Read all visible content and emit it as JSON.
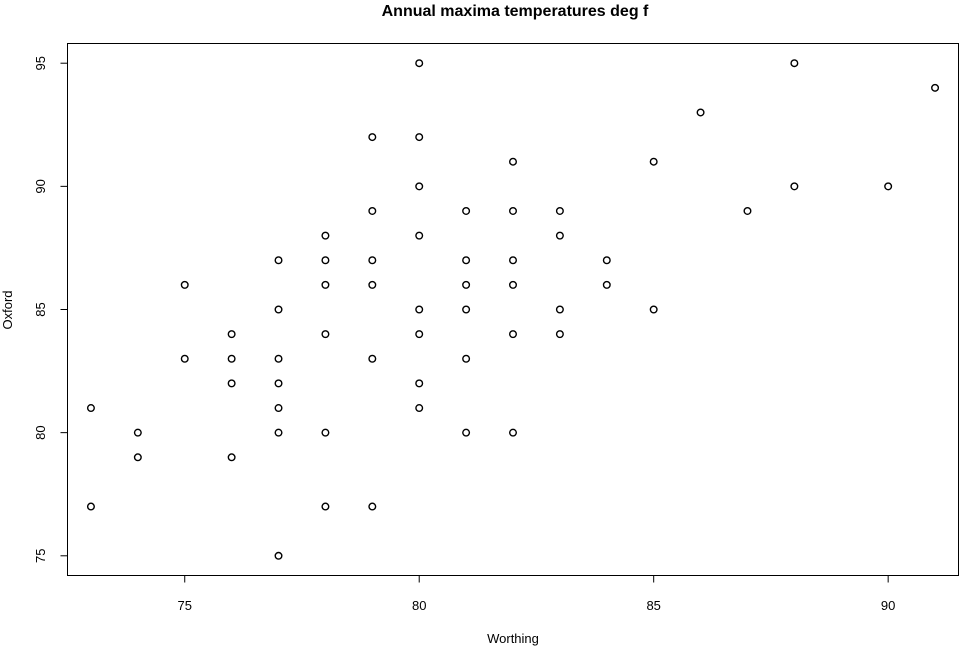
{
  "chart_data": {
    "type": "scatter",
    "title": "Annual maxima temperatures deg f",
    "xlabel": "Worthing",
    "ylabel": "Oxford",
    "xlim": [
      72.5,
      91.5
    ],
    "ylim": [
      74.2,
      95.8
    ],
    "xticks": [
      75,
      80,
      85,
      90
    ],
    "yticks": [
      75,
      80,
      85,
      90,
      95
    ],
    "marker": "open-circle",
    "grid": false,
    "points": [
      {
        "x": 73,
        "y": 81
      },
      {
        "x": 73,
        "y": 77
      },
      {
        "x": 74,
        "y": 80
      },
      {
        "x": 74,
        "y": 79
      },
      {
        "x": 75,
        "y": 86
      },
      {
        "x": 75,
        "y": 83
      },
      {
        "x": 76,
        "y": 84
      },
      {
        "x": 76,
        "y": 83
      },
      {
        "x": 76,
        "y": 82
      },
      {
        "x": 76,
        "y": 79
      },
      {
        "x": 77,
        "y": 87
      },
      {
        "x": 77,
        "y": 85
      },
      {
        "x": 77,
        "y": 83
      },
      {
        "x": 77,
        "y": 82
      },
      {
        "x": 77,
        "y": 81
      },
      {
        "x": 77,
        "y": 80
      },
      {
        "x": 77,
        "y": 75
      },
      {
        "x": 78,
        "y": 88
      },
      {
        "x": 78,
        "y": 87
      },
      {
        "x": 78,
        "y": 86
      },
      {
        "x": 78,
        "y": 84
      },
      {
        "x": 78,
        "y": 80
      },
      {
        "x": 78,
        "y": 77
      },
      {
        "x": 79,
        "y": 92
      },
      {
        "x": 79,
        "y": 89
      },
      {
        "x": 79,
        "y": 87
      },
      {
        "x": 79,
        "y": 86
      },
      {
        "x": 79,
        "y": 83
      },
      {
        "x": 79,
        "y": 77
      },
      {
        "x": 80,
        "y": 95
      },
      {
        "x": 80,
        "y": 92
      },
      {
        "x": 80,
        "y": 90
      },
      {
        "x": 80,
        "y": 88
      },
      {
        "x": 80,
        "y": 85
      },
      {
        "x": 80,
        "y": 84
      },
      {
        "x": 80,
        "y": 82
      },
      {
        "x": 80,
        "y": 81
      },
      {
        "x": 81,
        "y": 89
      },
      {
        "x": 81,
        "y": 87
      },
      {
        "x": 81,
        "y": 86
      },
      {
        "x": 81,
        "y": 85
      },
      {
        "x": 81,
        "y": 83
      },
      {
        "x": 81,
        "y": 80
      },
      {
        "x": 82,
        "y": 91
      },
      {
        "x": 82,
        "y": 89
      },
      {
        "x": 82,
        "y": 87
      },
      {
        "x": 82,
        "y": 86
      },
      {
        "x": 82,
        "y": 84
      },
      {
        "x": 82,
        "y": 80
      },
      {
        "x": 83,
        "y": 89
      },
      {
        "x": 83,
        "y": 88
      },
      {
        "x": 83,
        "y": 85
      },
      {
        "x": 83,
        "y": 84
      },
      {
        "x": 84,
        "y": 87
      },
      {
        "x": 84,
        "y": 86
      },
      {
        "x": 85,
        "y": 91
      },
      {
        "x": 85,
        "y": 85
      },
      {
        "x": 86,
        "y": 93
      },
      {
        "x": 87,
        "y": 89
      },
      {
        "x": 88,
        "y": 95
      },
      {
        "x": 88,
        "y": 90
      },
      {
        "x": 90,
        "y": 90
      },
      {
        "x": 91,
        "y": 94
      }
    ]
  }
}
